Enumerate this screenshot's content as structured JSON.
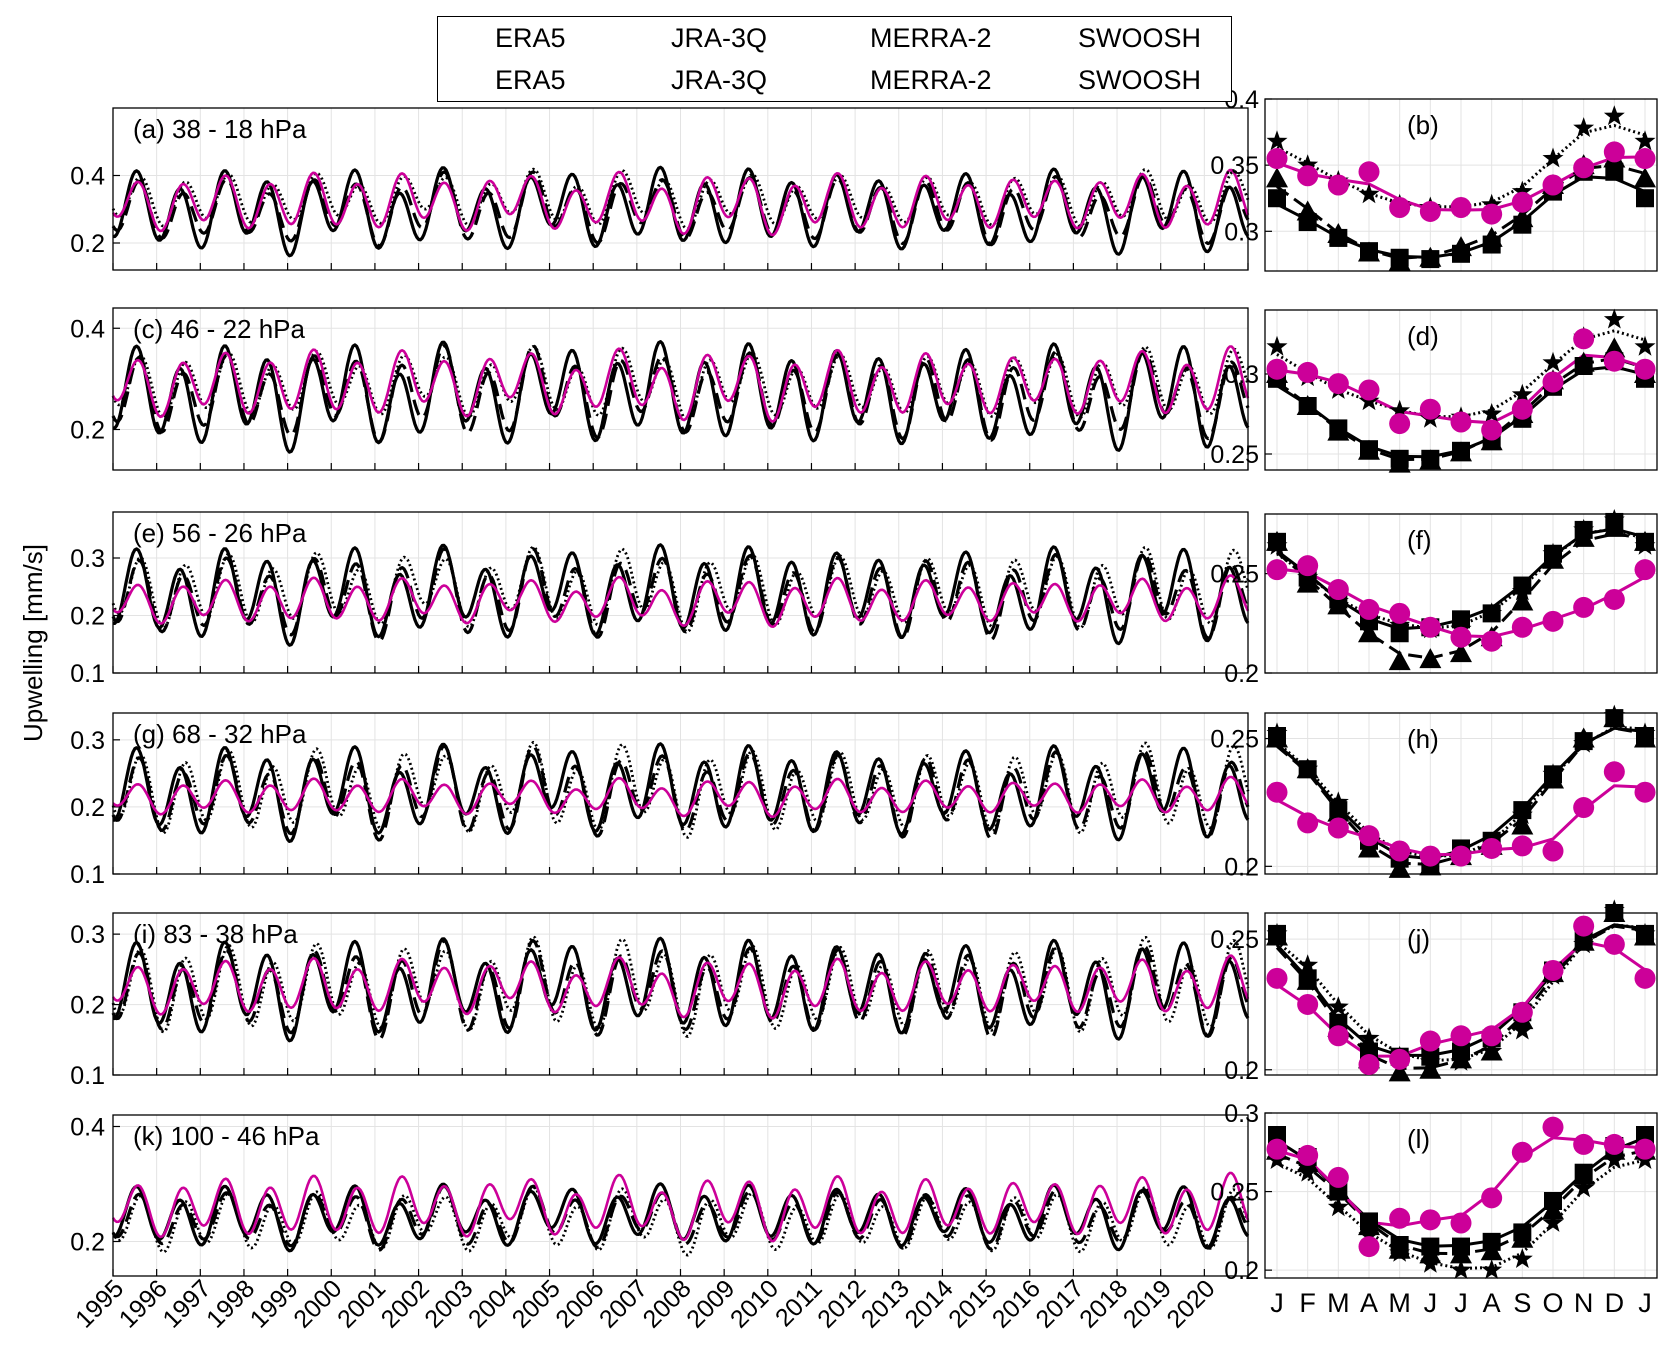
{
  "legend": {
    "lines": [
      {
        "name": "ERA5",
        "color": "#000000",
        "dash": "solid"
      },
      {
        "name": "JRA-3Q",
        "color": "#000000",
        "dash": "dashed"
      },
      {
        "name": "MERRA-2",
        "color": "#000000",
        "dash": "dotted"
      },
      {
        "name": "SWOOSH",
        "color": "#cc0099",
        "dash": "solid"
      }
    ],
    "markers": [
      {
        "name": "ERA5",
        "marker": "square"
      },
      {
        "name": "JRA-3Q",
        "marker": "triangle"
      },
      {
        "name": "MERRA-2",
        "marker": "star"
      },
      {
        "name": "SWOOSH",
        "marker": "circle"
      }
    ]
  },
  "ylabel": "Upwelling [mm/s]",
  "colors": {
    "reanalysis": "#000000",
    "swoosh": "#cc0099",
    "grid": "#e3e3e3"
  },
  "chart_data": [
    {
      "type": "line",
      "panel": "(a) 38 - 18 hPa",
      "x_range": [
        1995,
        2021
      ],
      "ylim": [
        0.12,
        0.6
      ],
      "yticks": [
        0.2,
        0.4
      ],
      "series_params": [
        {
          "name": "ERA5",
          "mean": 0.3,
          "amp": 0.09,
          "phase": 0.0
        },
        {
          "name": "JRA-3Q",
          "mean": 0.3,
          "amp": 0.075,
          "phase": 0.05
        },
        {
          "name": "MERRA-2",
          "mean": 0.33,
          "amp": 0.06,
          "phase": 0.1
        },
        {
          "name": "SWOOSH",
          "mean": 0.32,
          "amp": 0.065,
          "phase": 0.05
        }
      ]
    },
    {
      "type": "line",
      "panel": "(c) 46 - 22 hPa",
      "x_range": [
        1995,
        2021
      ],
      "ylim": [
        0.12,
        0.44
      ],
      "yticks": [
        0.2,
        0.4
      ],
      "series_params": [
        {
          "name": "ERA5",
          "mean": 0.27,
          "amp": 0.075,
          "phase": 0.0
        },
        {
          "name": "JRA-3Q",
          "mean": 0.27,
          "amp": 0.065,
          "phase": 0.05
        },
        {
          "name": "MERRA-2",
          "mean": 0.29,
          "amp": 0.05,
          "phase": 0.1
        },
        {
          "name": "SWOOSH",
          "mean": 0.29,
          "amp": 0.05,
          "phase": 0.05
        }
      ]
    },
    {
      "type": "line",
      "panel": "(e) 56 - 26 hPa",
      "x_range": [
        1995,
        2021
      ],
      "ylim": [
        0.1,
        0.38
      ],
      "yticks": [
        0.1,
        0.2,
        0.3
      ],
      "series_params": [
        {
          "name": "ERA5",
          "mean": 0.24,
          "amp": 0.06,
          "phase": 0.0
        },
        {
          "name": "JRA-3Q",
          "mean": 0.235,
          "amp": 0.055,
          "phase": 0.05
        },
        {
          "name": "MERRA-2",
          "mean": 0.245,
          "amp": 0.05,
          "phase": 0.1
        },
        {
          "name": "SWOOSH",
          "mean": 0.225,
          "amp": 0.03,
          "phase": 0.05
        }
      ]
    },
    {
      "type": "line",
      "panel": "(g) 68 - 32 hPa",
      "x_range": [
        1995,
        2021
      ],
      "ylim": [
        0.1,
        0.34
      ],
      "yticks": [
        0.1,
        0.2,
        0.3
      ],
      "series_params": [
        {
          "name": "ERA5",
          "mean": 0.225,
          "amp": 0.05,
          "phase": 0.0
        },
        {
          "name": "JRA-3Q",
          "mean": 0.22,
          "amp": 0.048,
          "phase": 0.05
        },
        {
          "name": "MERRA-2",
          "mean": 0.225,
          "amp": 0.048,
          "phase": 0.1
        },
        {
          "name": "SWOOSH",
          "mean": 0.215,
          "amp": 0.02,
          "phase": 0.05
        }
      ]
    },
    {
      "type": "line",
      "panel": "(i) 83 - 38 hPa",
      "x_range": [
        1995,
        2021
      ],
      "ylim": [
        0.1,
        0.33
      ],
      "yticks": [
        0.1,
        0.2,
        0.3
      ],
      "series_params": [
        {
          "name": "ERA5",
          "mean": 0.225,
          "amp": 0.05,
          "phase": 0.0
        },
        {
          "name": "JRA-3Q",
          "mean": 0.22,
          "amp": 0.048,
          "phase": 0.05
        },
        {
          "name": "MERRA-2",
          "mean": 0.225,
          "amp": 0.048,
          "phase": 0.1
        },
        {
          "name": "SWOOSH",
          "mean": 0.225,
          "amp": 0.03,
          "phase": 0.05
        }
      ]
    },
    {
      "type": "line",
      "panel": "(k) 100 - 46 hPa",
      "x_range": [
        1995,
        2021
      ],
      "ylim": [
        0.14,
        0.42
      ],
      "yticks": [
        0.2,
        0.4
      ],
      "series_params": [
        {
          "name": "ERA5",
          "mean": 0.245,
          "amp": 0.04,
          "phase": 0.0
        },
        {
          "name": "JRA-3Q",
          "mean": 0.24,
          "amp": 0.038,
          "phase": 0.05
        },
        {
          "name": "MERRA-2",
          "mean": 0.235,
          "amp": 0.04,
          "phase": 0.1
        },
        {
          "name": "SWOOSH",
          "mean": 0.26,
          "amp": 0.04,
          "phase": 0.05
        }
      ]
    }
  ],
  "x_tick_labels": [
    "1995",
    "1996",
    "1997",
    "1998",
    "1999",
    "2000",
    "2001",
    "2002",
    "2003",
    "2004",
    "2005",
    "2006",
    "2007",
    "2008",
    "2009",
    "2010",
    "2011",
    "2012",
    "2013",
    "2014",
    "2015",
    "2016",
    "2017",
    "2018",
    "2019",
    "2020"
  ],
  "climatology": {
    "month_labels": [
      "J",
      "F",
      "M",
      "A",
      "M",
      "J",
      "J",
      "A",
      "S",
      "O",
      "N",
      "D",
      "J"
    ],
    "panels": [
      {
        "panel": "(b)",
        "ylim": [
          0.27,
          0.4
        ],
        "yticks": [
          0.3,
          0.35,
          0.4
        ],
        "ytick_labels": [
          "0.3",
          "0.35",
          "0.4"
        ],
        "ERA5": [
          0.325,
          0.307,
          0.295,
          0.285,
          0.28,
          0.279,
          0.283,
          0.29,
          0.305,
          0.33,
          0.345,
          0.345,
          0.325
        ],
        "JRA-3Q": [
          0.34,
          0.315,
          0.298,
          0.284,
          0.277,
          0.28,
          0.288,
          0.295,
          0.31,
          0.335,
          0.35,
          0.355,
          0.34
        ],
        "MERRA-2": [
          0.368,
          0.35,
          0.338,
          0.328,
          0.32,
          0.318,
          0.318,
          0.32,
          0.33,
          0.355,
          0.378,
          0.387,
          0.368
        ],
        "SWOOSH": [
          0.355,
          0.342,
          0.335,
          0.345,
          0.318,
          0.315,
          0.318,
          0.313,
          0.322,
          0.335,
          0.348,
          0.36,
          0.355
        ]
      },
      {
        "panel": "(d)",
        "ylim": [
          0.24,
          0.34
        ],
        "yticks": [
          0.25,
          0.3
        ],
        "ytick_labels": [
          "0.25",
          "0.3"
        ],
        "ERA5": [
          0.297,
          0.28,
          0.266,
          0.253,
          0.247,
          0.247,
          0.252,
          0.258,
          0.272,
          0.292,
          0.305,
          0.308,
          0.297
        ],
        "JRA-3Q": [
          0.3,
          0.28,
          0.264,
          0.252,
          0.244,
          0.246,
          0.251,
          0.258,
          0.275,
          0.296,
          0.307,
          0.316,
          0.3
        ],
        "MERRA-2": [
          0.317,
          0.298,
          0.29,
          0.283,
          0.277,
          0.272,
          0.273,
          0.275,
          0.287,
          0.307,
          0.323,
          0.334,
          0.317
        ],
        "SWOOSH": [
          0.303,
          0.301,
          0.294,
          0.29,
          0.269,
          0.278,
          0.27,
          0.265,
          0.278,
          0.295,
          0.322,
          0.308,
          0.303
        ]
      },
      {
        "panel": "(f)",
        "ylim": [
          0.2,
          0.28
        ],
        "yticks": [
          0.2,
          0.25
        ],
        "ytick_labels": [
          "0.2",
          "0.25"
        ],
        "ERA5": [
          0.266,
          0.248,
          0.237,
          0.226,
          0.22,
          0.223,
          0.227,
          0.23,
          0.244,
          0.26,
          0.272,
          0.276,
          0.266
        ],
        "JRA-3Q": [
          0.266,
          0.245,
          0.234,
          0.22,
          0.206,
          0.207,
          0.21,
          0.218,
          0.236,
          0.257,
          0.268,
          0.273,
          0.266
        ],
        "MERRA-2": [
          0.264,
          0.248,
          0.236,
          0.229,
          0.224,
          0.222,
          0.222,
          0.23,
          0.241,
          0.26,
          0.272,
          0.277,
          0.264
        ],
        "SWOOSH": [
          0.252,
          0.254,
          0.242,
          0.232,
          0.23,
          0.223,
          0.218,
          0.216,
          0.223,
          0.226,
          0.233,
          0.237,
          0.252
        ]
      },
      {
        "panel": "(h)",
        "ylim": [
          0.197,
          0.26
        ],
        "yticks": [
          0.2,
          0.25
        ],
        "ytick_labels": [
          "0.2",
          "0.25"
        ],
        "ERA5": [
          0.251,
          0.238,
          0.222,
          0.21,
          0.203,
          0.201,
          0.207,
          0.21,
          0.222,
          0.236,
          0.249,
          0.258,
          0.251
        ],
        "JRA-3Q": [
          0.25,
          0.238,
          0.221,
          0.207,
          0.199,
          0.2,
          0.204,
          0.208,
          0.216,
          0.234,
          0.25,
          0.258,
          0.25
        ],
        "MERRA-2": [
          0.252,
          0.238,
          0.225,
          0.211,
          0.205,
          0.203,
          0.204,
          0.207,
          0.22,
          0.236,
          0.248,
          0.259,
          0.252
        ],
        "SWOOSH": [
          0.229,
          0.217,
          0.215,
          0.212,
          0.206,
          0.204,
          0.204,
          0.207,
          0.208,
          0.206,
          0.223,
          0.237,
          0.229
        ]
      },
      {
        "panel": "(j)",
        "ylim": [
          0.198,
          0.26
        ],
        "yticks": [
          0.2,
          0.25
        ],
        "ytick_labels": [
          "0.2",
          "0.25"
        ],
        "ERA5": [
          0.252,
          0.235,
          0.218,
          0.207,
          0.205,
          0.205,
          0.207,
          0.212,
          0.222,
          0.238,
          0.25,
          0.26,
          0.252
        ],
        "JRA-3Q": [
          0.251,
          0.234,
          0.216,
          0.204,
          0.199,
          0.2,
          0.204,
          0.207,
          0.219,
          0.237,
          0.249,
          0.26,
          0.251
        ],
        "MERRA-2": [
          0.252,
          0.24,
          0.224,
          0.212,
          0.205,
          0.203,
          0.203,
          0.207,
          0.215,
          0.236,
          0.248,
          0.261,
          0.252
        ],
        "SWOOSH": [
          0.235,
          0.225,
          0.213,
          0.202,
          0.204,
          0.211,
          0.213,
          0.213,
          0.222,
          0.238,
          0.255,
          0.248,
          0.235
        ]
      },
      {
        "panel": "(l)",
        "ylim": [
          0.195,
          0.3
        ],
        "yticks": [
          0.2,
          0.25,
          0.3
        ],
        "ytick_labels": [
          "0.2",
          "0.25",
          "0.3"
        ],
        "ERA5": [
          0.286,
          0.272,
          0.25,
          0.231,
          0.216,
          0.215,
          0.215,
          0.218,
          0.224,
          0.244,
          0.262,
          0.279,
          0.286
        ],
        "JRA-3Q": [
          0.276,
          0.268,
          0.251,
          0.228,
          0.213,
          0.21,
          0.21,
          0.212,
          0.22,
          0.238,
          0.26,
          0.276,
          0.276
        ],
        "MERRA-2": [
          0.27,
          0.262,
          0.24,
          0.222,
          0.211,
          0.204,
          0.2,
          0.2,
          0.207,
          0.23,
          0.252,
          0.27,
          0.27
        ],
        "SWOOSH": [
          0.277,
          0.273,
          0.259,
          0.215,
          0.233,
          0.232,
          0.23,
          0.246,
          0.275,
          0.291,
          0.28,
          0.28,
          0.277
        ]
      }
    ]
  }
}
